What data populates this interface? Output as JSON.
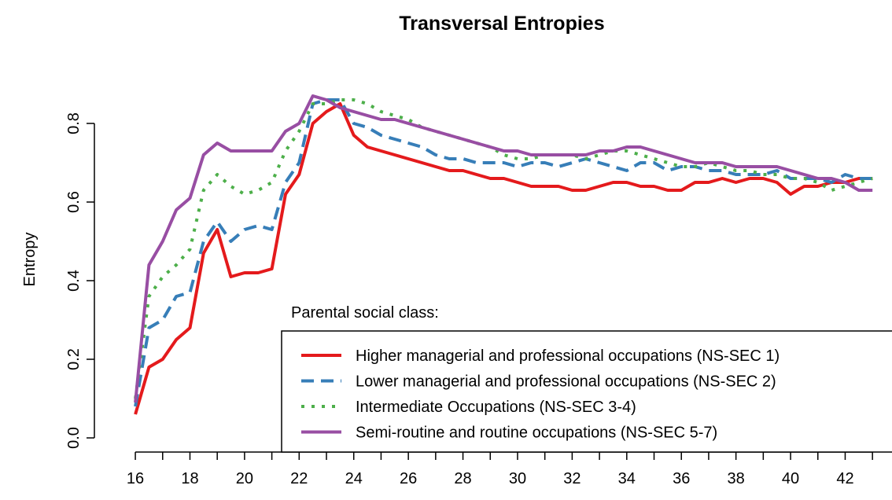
{
  "chart_data": {
    "type": "line",
    "title": "Transversal Entropies",
    "y_label": "Entropy",
    "legend_title": "Parental social class:",
    "legend": "bottom-right",
    "x": [
      16,
      16.5,
      17,
      17.5,
      18,
      18.5,
      19,
      19.5,
      20,
      20.5,
      21,
      21.5,
      22,
      22.5,
      23,
      23.5,
      24,
      24.5,
      25,
      25.5,
      26,
      26.5,
      27,
      27.5,
      28,
      28.5,
      29,
      29.5,
      30,
      30.5,
      31,
      31.5,
      32,
      32.5,
      33,
      33.5,
      34,
      34.5,
      35,
      35.5,
      36,
      36.5,
      37,
      37.5,
      38,
      38.5,
      39,
      39.5,
      40,
      40.5,
      41,
      41.5,
      42,
      42.5,
      43
    ],
    "series": [
      {
        "name": "Higher managerial and professional occupations (NS-SEC 1)",
        "color": "#e41a1c",
        "dash": "solid",
        "values": [
          0.06,
          0.18,
          0.2,
          0.25,
          0.28,
          0.47,
          0.53,
          0.41,
          0.42,
          0.42,
          0.43,
          0.62,
          0.67,
          0.8,
          0.83,
          0.85,
          0.77,
          0.74,
          0.73,
          0.72,
          0.71,
          0.7,
          0.69,
          0.68,
          0.68,
          0.67,
          0.66,
          0.66,
          0.65,
          0.64,
          0.64,
          0.64,
          0.63,
          0.63,
          0.64,
          0.65,
          0.65,
          0.64,
          0.64,
          0.63,
          0.63,
          0.65,
          0.65,
          0.66,
          0.65,
          0.66,
          0.66,
          0.65,
          0.62,
          0.64,
          0.64,
          0.65,
          0.65,
          0.66,
          0.66
        ]
      },
      {
        "name": "Lower managerial and professional occupations (NS-SEC 2)",
        "color": "#377eb8",
        "dash": "dashed",
        "values": [
          0.08,
          0.28,
          0.3,
          0.36,
          0.37,
          0.5,
          0.55,
          0.5,
          0.53,
          0.54,
          0.53,
          0.65,
          0.7,
          0.85,
          0.86,
          0.86,
          0.8,
          0.79,
          0.77,
          0.76,
          0.75,
          0.74,
          0.72,
          0.71,
          0.71,
          0.7,
          0.7,
          0.7,
          0.69,
          0.7,
          0.7,
          0.69,
          0.7,
          0.71,
          0.7,
          0.69,
          0.68,
          0.7,
          0.7,
          0.68,
          0.69,
          0.69,
          0.68,
          0.68,
          0.67,
          0.67,
          0.67,
          0.68,
          0.66,
          0.66,
          0.66,
          0.65,
          0.67,
          0.66,
          0.66
        ]
      },
      {
        "name": "Intermediate Occupations (NS-SEC 3-4)",
        "color": "#4daf4a",
        "dash": "dotted",
        "values": [
          0.1,
          0.36,
          0.41,
          0.44,
          0.48,
          0.63,
          0.67,
          0.64,
          0.62,
          0.63,
          0.65,
          0.73,
          0.78,
          0.85,
          0.85,
          0.86,
          0.86,
          0.85,
          0.83,
          0.82,
          0.81,
          0.79,
          0.78,
          0.77,
          0.76,
          0.75,
          0.74,
          0.72,
          0.71,
          0.71,
          0.72,
          0.72,
          0.72,
          0.71,
          0.72,
          0.73,
          0.73,
          0.72,
          0.71,
          0.7,
          0.69,
          0.69,
          0.7,
          0.69,
          0.68,
          0.68,
          0.67,
          0.67,
          0.66,
          0.66,
          0.65,
          0.63,
          0.64,
          0.65,
          0.66
        ]
      },
      {
        "name": "Semi-routine and routine occupations (NS-SEC 5-7)",
        "color": "#984ea3",
        "dash": "solid",
        "values": [
          0.09,
          0.44,
          0.5,
          0.58,
          0.61,
          0.72,
          0.75,
          0.73,
          0.73,
          0.73,
          0.73,
          0.78,
          0.8,
          0.87,
          0.86,
          0.84,
          0.83,
          0.82,
          0.81,
          0.81,
          0.8,
          0.79,
          0.78,
          0.77,
          0.76,
          0.75,
          0.74,
          0.73,
          0.73,
          0.72,
          0.72,
          0.72,
          0.72,
          0.72,
          0.73,
          0.73,
          0.74,
          0.74,
          0.73,
          0.72,
          0.71,
          0.7,
          0.7,
          0.7,
          0.69,
          0.69,
          0.69,
          0.69,
          0.68,
          0.67,
          0.66,
          0.66,
          0.65,
          0.63,
          0.63
        ]
      }
    ],
    "xlim": [
      14.5,
      43.6
    ],
    "xticks": [
      16,
      18,
      20,
      22,
      24,
      26,
      28,
      30,
      32,
      34,
      36,
      38,
      40,
      42
    ],
    "xminor_ticks": [
      17,
      19,
      21,
      23,
      25,
      27,
      29,
      31,
      33,
      35,
      37,
      39,
      41,
      43
    ],
    "ylim": [
      -0.036,
      0.9
    ],
    "yticks": [
      {
        "value": 0,
        "label": "0.0"
      },
      0.2,
      0.4,
      0.6,
      0.8
    ]
  }
}
